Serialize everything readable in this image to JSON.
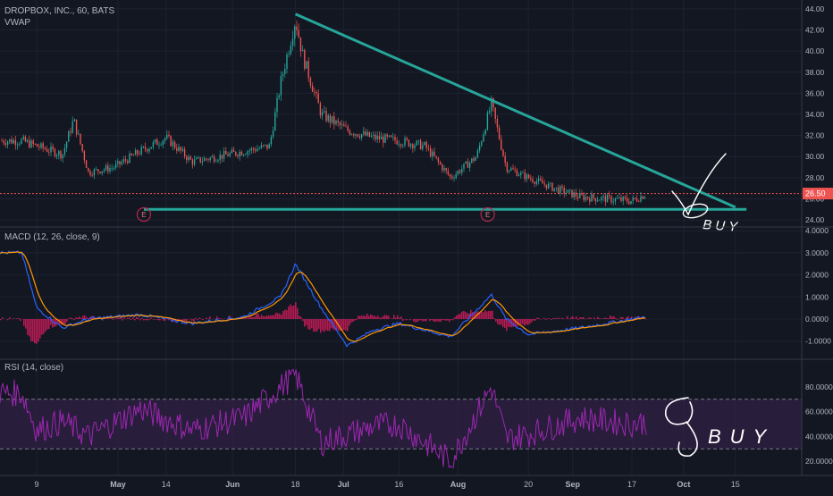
{
  "header": {
    "symbol_line": "DROPBOX, INC., 60, BATS",
    "indicator": "VWAP"
  },
  "colors": {
    "background": "#131722",
    "grid": "#1e2230",
    "text": "#b2b5be",
    "up": "#26a69a",
    "down": "#ef5350",
    "trend": "#26a69a",
    "price_line": "#ef5350",
    "macd": "#2962ff",
    "signal": "#ff9800",
    "hist_pos": "#e91e63",
    "hist_neg": "#e91e63",
    "rsi": "#9c27b0",
    "rsi_band": "#3a2350",
    "ink": "#ffffff"
  },
  "price_axis": {
    "ticks": [
      "44.00",
      "42.00",
      "40.00",
      "38.00",
      "36.00",
      "34.00",
      "32.00",
      "30.00",
      "28.00",
      "26.00",
      "24.00"
    ]
  },
  "price_tag": "26.50",
  "earnings_markers": [
    {
      "label": "E",
      "date": "May 8"
    },
    {
      "label": "E",
      "date": "Aug 9"
    }
  ],
  "handwriting": {
    "buy_top": "BUY",
    "buy_bottom": "BUY"
  },
  "macd": {
    "title": "MACD (12, 26, close, 9)",
    "ticks": [
      "4.0000",
      "3.0000",
      "2.0000",
      "1.0000",
      "0.0000",
      "-1.0000"
    ]
  },
  "rsi": {
    "title": "RSI (14, close)",
    "ticks": [
      "80.0000",
      "60.0000",
      "40.0000",
      "20.0000"
    ]
  },
  "time_axis": {
    "labels": [
      "9",
      "May",
      "14",
      "Jun",
      "18",
      "Jul",
      "16",
      "Aug",
      "20",
      "Sep",
      "17",
      "Oct",
      "15"
    ]
  },
  "chart_data": {
    "type": "candlestick",
    "title": "DROPBOX, INC., 60, BATS",
    "ylim": [
      23.5,
      44.5
    ],
    "trendlines": [
      {
        "name": "descending-resistance",
        "from": [
          "Jun 18",
          43.5
        ],
        "to": [
          "Oct 15",
          25.2
        ]
      },
      {
        "name": "horizontal-support",
        "from": [
          "May 8",
          25.0
        ],
        "to": [
          "Oct 18",
          25.0
        ]
      }
    ],
    "price_path": [
      [
        "Apr 5",
        31.5
      ],
      [
        "Apr 9",
        31.0
      ],
      [
        "Apr 16",
        30.2
      ],
      [
        "Apr 19",
        33.5
      ],
      [
        "Apr 23",
        28.5
      ],
      [
        "Apr 30",
        29.0
      ],
      [
        "May 7",
        30.5
      ],
      [
        "May 14",
        31.8
      ],
      [
        "May 21",
        29.5
      ],
      [
        "May 28",
        30.0
      ],
      [
        "Jun 4",
        30.5
      ],
      [
        "Jun 11",
        31.0
      ],
      [
        "Jun 14",
        37.0
      ],
      [
        "Jun 18",
        43.0
      ],
      [
        "Jun 20",
        39.5
      ],
      [
        "Jun 25",
        34.0
      ],
      [
        "Jul 2",
        32.5
      ],
      [
        "Jul 9",
        31.8
      ],
      [
        "Jul 16",
        31.5
      ],
      [
        "Jul 23",
        31.0
      ],
      [
        "Jul 30",
        28.0
      ],
      [
        "Aug 6",
        30.0
      ],
      [
        "Aug 10",
        35.0
      ],
      [
        "Aug 14",
        29.0
      ],
      [
        "Aug 20",
        28.0
      ],
      [
        "Aug 27",
        27.0
      ],
      [
        "Sep 3",
        26.2
      ],
      [
        "Sep 10",
        26.0
      ],
      [
        "Sep 17",
        25.8
      ],
      [
        "Sep 21",
        26.5
      ]
    ],
    "current_price": 26.5,
    "macd_path": [
      [
        "Apr 5",
        3.0
      ],
      [
        "Apr 9",
        0.5
      ],
      [
        "Apr 16",
        -0.4
      ],
      [
        "Apr 23",
        0.0
      ],
      [
        "May 7",
        0.2
      ],
      [
        "May 21",
        -0.2
      ],
      [
        "Jun 4",
        0.1
      ],
      [
        "Jun 14",
        1.0
      ],
      [
        "Jun 18",
        2.5
      ],
      [
        "Jun 25",
        0.5
      ],
      [
        "Jul 2",
        -1.2
      ],
      [
        "Jul 9",
        -0.5
      ],
      [
        "Jul 16",
        -0.2
      ],
      [
        "Jul 30",
        -0.8
      ],
      [
        "Aug 10",
        1.1
      ],
      [
        "Aug 14",
        0.0
      ],
      [
        "Aug 20",
        -0.7
      ],
      [
        "Sep 3",
        -0.4
      ],
      [
        "Sep 17",
        0.0
      ],
      [
        "Sep 21",
        0.1
      ]
    ],
    "rsi_path": [
      [
        "Apr 5",
        75
      ],
      [
        "Apr 9",
        45
      ],
      [
        "Apr 16",
        52
      ],
      [
        "Apr 23",
        40
      ],
      [
        "May 7",
        62
      ],
      [
        "May 21",
        45
      ],
      [
        "Jun 4",
        55
      ],
      [
        "Jun 18",
        90
      ],
      [
        "Jun 25",
        35
      ],
      [
        "Jul 9",
        48
      ],
      [
        "Jul 16",
        50
      ],
      [
        "Jul 30",
        20
      ],
      [
        "Aug 10",
        80
      ],
      [
        "Aug 14",
        38
      ],
      [
        "Aug 20",
        42
      ],
      [
        "Sep 3",
        55
      ],
      [
        "Sep 17",
        50
      ],
      [
        "Sep 21",
        52
      ]
    ],
    "rsi_levels": [
      70,
      30
    ]
  }
}
